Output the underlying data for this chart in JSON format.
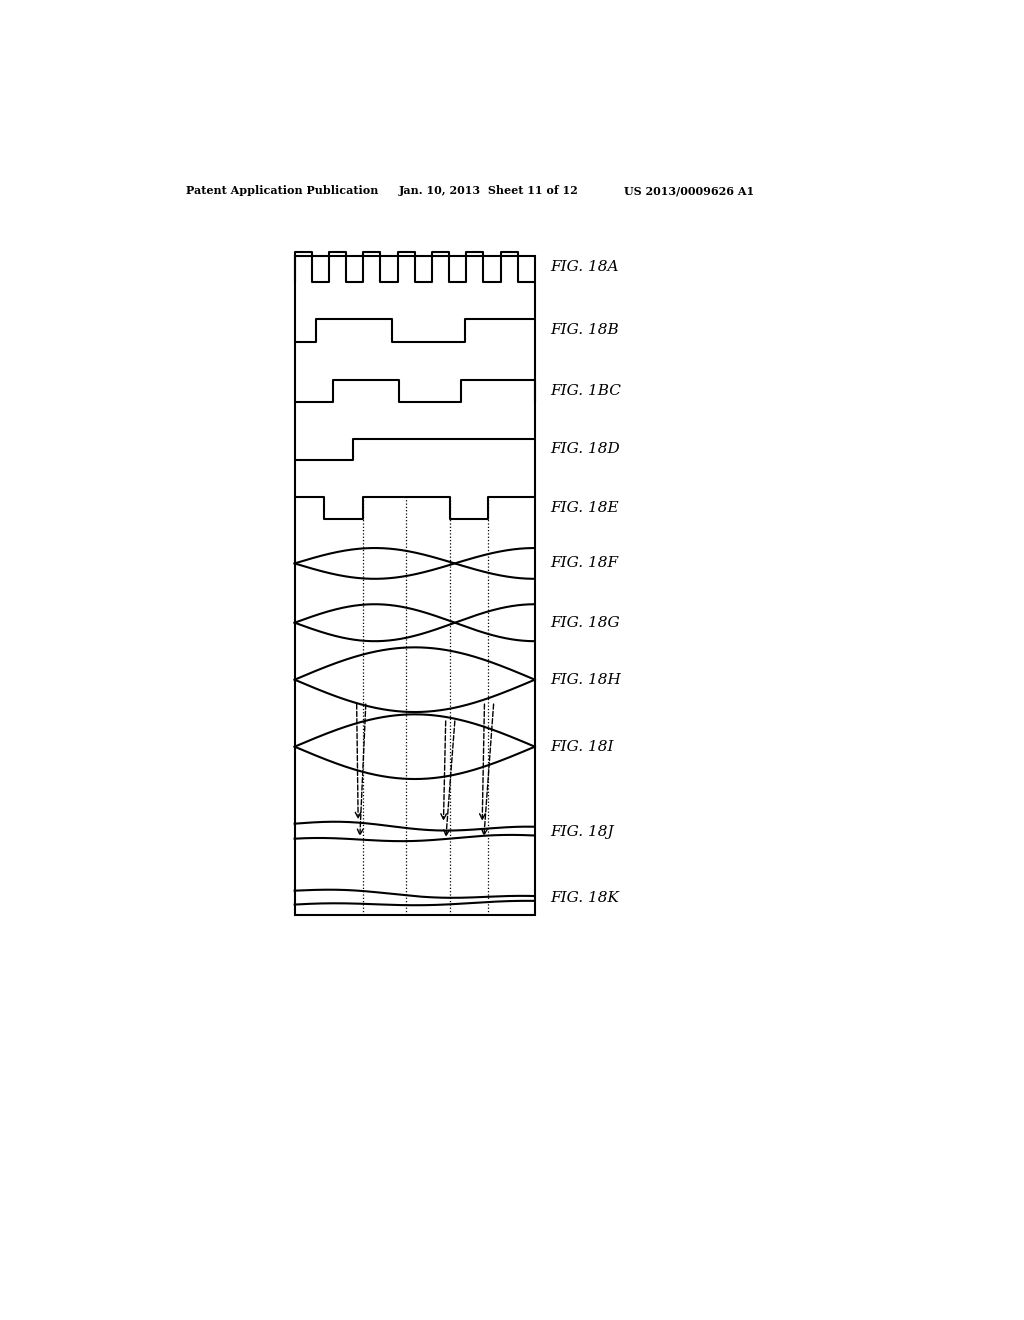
{
  "header_left": "Patent Application Publication",
  "header_mid": "Jan. 10, 2013  Sheet 11 of 12",
  "header_right": "US 2013/0009626 A1",
  "figure_labels": [
    "FIG. 18A",
    "FIG. 18B",
    "FIG. 1BC",
    "FIG. 18D",
    "FIG. 18E",
    "FIG. 18F",
    "FIG. 18G",
    "FIG. 18H",
    "FIG. 18I",
    "FIG. 18J",
    "FIG. 18K"
  ],
  "bg_color": "#ffffff",
  "line_color": "#000000"
}
